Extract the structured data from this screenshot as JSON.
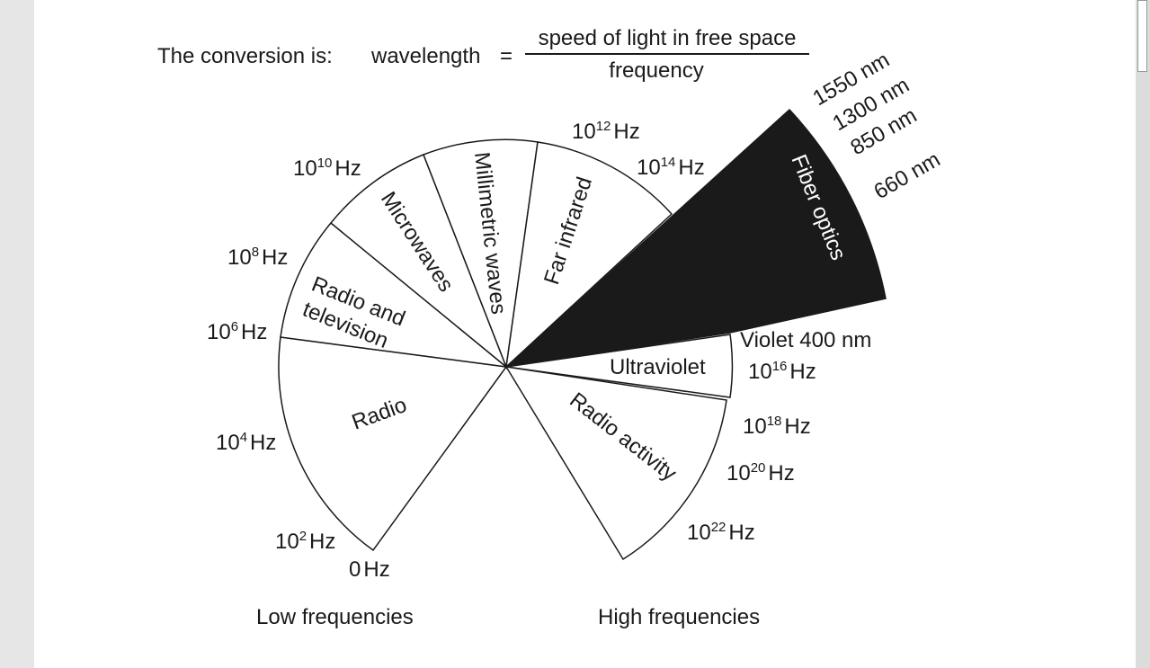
{
  "formula": {
    "prefix": "The conversion is:",
    "lhs": "wavelength",
    "equals": "=",
    "numerator": "speed of light in free space",
    "denominator": "frequency"
  },
  "bands": [
    {
      "label": "Radio"
    },
    {
      "label": "Radio and"
    },
    {
      "label": "television"
    },
    {
      "label": "Microwaves"
    },
    {
      "label": "Millimetric waves"
    },
    {
      "label": "Far infrared"
    },
    {
      "label": "Fiber optics",
      "fill": "#1a1a1a"
    },
    {
      "label": "Ultraviolet"
    },
    {
      "label": "Radio activity"
    }
  ],
  "frequencies": [
    {
      "base": "0",
      "exp": "",
      "unit": "Hz"
    },
    {
      "base": "10",
      "exp": "2",
      "unit": "Hz"
    },
    {
      "base": "10",
      "exp": "4",
      "unit": "Hz"
    },
    {
      "base": "10",
      "exp": "6",
      "unit": "Hz"
    },
    {
      "base": "10",
      "exp": "8",
      "unit": "Hz"
    },
    {
      "base": "10",
      "exp": "10",
      "unit": "Hz"
    },
    {
      "base": "10",
      "exp": "12",
      "unit": "Hz"
    },
    {
      "base": "10",
      "exp": "14",
      "unit": "Hz"
    },
    {
      "base": "10",
      "exp": "16",
      "unit": "Hz"
    },
    {
      "base": "10",
      "exp": "18",
      "unit": "Hz"
    },
    {
      "base": "10",
      "exp": "20",
      "unit": "Hz"
    },
    {
      "base": "10",
      "exp": "22",
      "unit": "Hz"
    }
  ],
  "wavelengths": [
    "1550 nm",
    "1300 nm",
    "850 nm",
    "660 nm",
    "Violet 400 nm"
  ],
  "footer": {
    "low": "Low frequencies",
    "high": "High frequencies"
  }
}
